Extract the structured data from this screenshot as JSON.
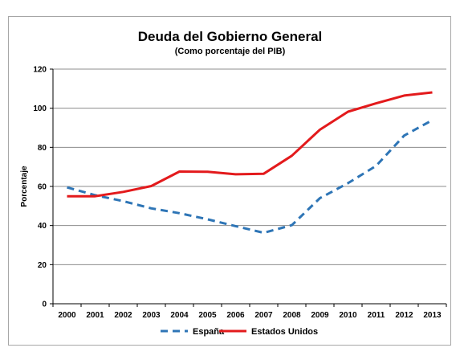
{
  "chart_data": {
    "type": "line",
    "title": "Deuda del Gobierno General",
    "subtitle": "(Como porcentaje del PIB)",
    "ylabel": "Porcentaje",
    "xlabel": "",
    "ylim": [
      0,
      120
    ],
    "yticks": [
      "0",
      "20",
      "40",
      "60",
      "80",
      "100",
      "120"
    ],
    "categories": [
      "2000",
      "2001",
      "2002",
      "2003",
      "2004",
      "2005",
      "2006",
      "2007",
      "2008",
      "2009",
      "2010",
      "2011",
      "2012",
      "2013"
    ],
    "grid": "horizontal",
    "legend": "bottom",
    "series": [
      {
        "name": "España",
        "style": "dashed",
        "color": "#2e75b6",
        "values": [
          59.5,
          55.5,
          52.5,
          48.8,
          46.3,
          43.2,
          39.7,
          36.3,
          40.2,
          54.0,
          61.7,
          70.5,
          86.0,
          93.9
        ]
      },
      {
        "name": "Estados Unidos",
        "style": "solid",
        "color": "#e31a1c",
        "values": [
          55.0,
          55.0,
          57.2,
          60.2,
          67.6,
          67.5,
          66.2,
          66.5,
          75.7,
          89.0,
          98.2,
          102.5,
          106.5,
          108.1
        ]
      }
    ]
  }
}
